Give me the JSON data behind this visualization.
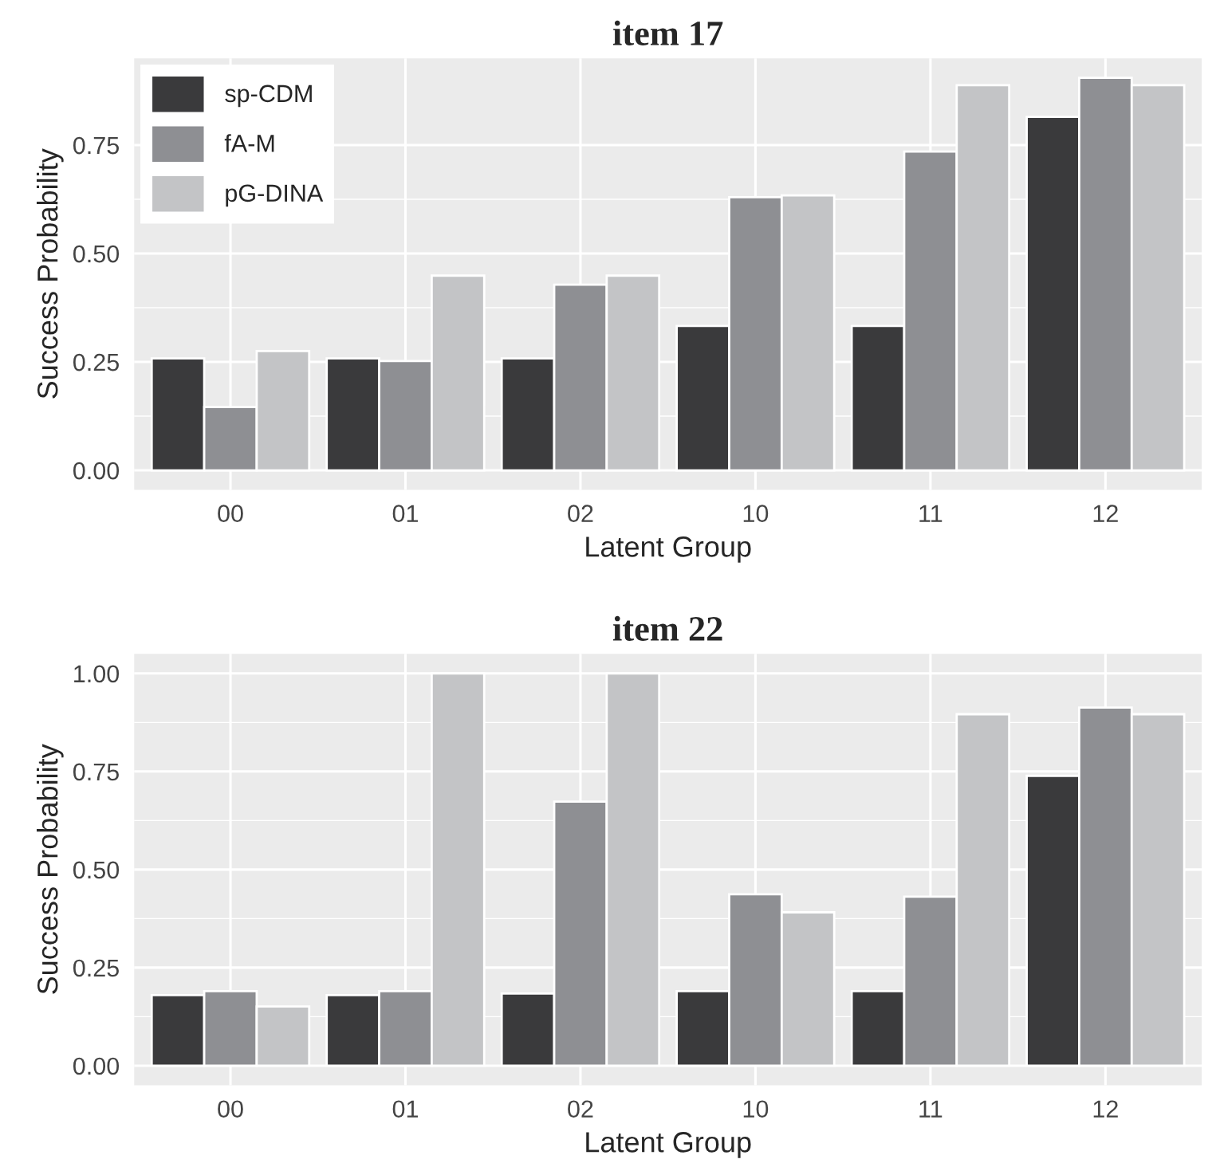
{
  "chart_data": [
    {
      "type": "bar",
      "title": "item 17",
      "xlabel": "Latent Group",
      "ylabel": "Success Probability",
      "categories": [
        "00",
        "01",
        "02",
        "10",
        "11",
        "12"
      ],
      "series": [
        {
          "name": "sp-CDM",
          "color": "#3a3a3c",
          "values": [
            0.258,
            0.258,
            0.258,
            0.333,
            0.333,
            0.815
          ]
        },
        {
          "name": "fA-M",
          "color": "#8e8f93",
          "values": [
            0.146,
            0.252,
            0.428,
            0.63,
            0.735,
            0.905
          ]
        },
        {
          "name": "pG-DINA",
          "color": "#c3c4c6",
          "values": [
            0.275,
            0.449,
            0.449,
            0.634,
            0.888,
            0.888
          ]
        }
      ],
      "ylim": [
        -0.045,
        0.95
      ],
      "yticks": [
        {
          "value": 0,
          "label": "0.00"
        },
        {
          "value": 0.25,
          "label": "0.25"
        },
        {
          "value": 0.5,
          "label": "0.50"
        },
        {
          "value": 0.75,
          "label": "0.75"
        }
      ],
      "grid": true,
      "legend": "top left"
    },
    {
      "type": "bar",
      "title": "item 22",
      "xlabel": "Latent Group",
      "ylabel": "Success Probability",
      "categories": [
        "00",
        "01",
        "02",
        "10",
        "11",
        "12"
      ],
      "series": [
        {
          "color": "#3a3a3c",
          "values": [
            0.18,
            0.18,
            0.184,
            0.19,
            0.19,
            0.739
          ]
        },
        {
          "color": "#8e8f93",
          "values": [
            0.19,
            0.19,
            0.673,
            0.437,
            0.431,
            0.913
          ]
        },
        {
          "color": "#c3c4c6",
          "values": [
            0.151,
            1.0,
            1.0,
            0.391,
            0.896,
            0.896
          ]
        }
      ],
      "ylim": [
        -0.05,
        1.05
      ],
      "yticks": [
        {
          "value": 0,
          "label": "0.00"
        },
        {
          "value": 0.25,
          "label": "0.25"
        },
        {
          "value": 0.5,
          "label": "0.50"
        },
        {
          "value": 0.75,
          "label": "0.75"
        },
        {
          "value": 1,
          "label": "1.00"
        }
      ],
      "grid": true,
      "legend": false
    }
  ]
}
